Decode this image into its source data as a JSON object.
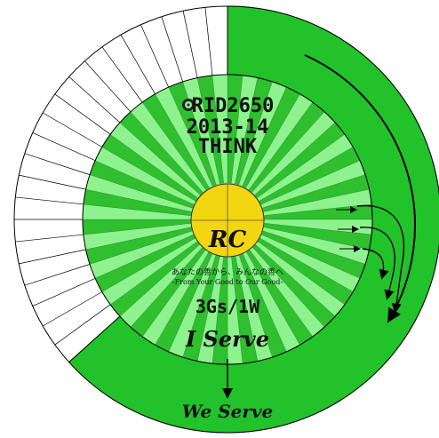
{
  "header": {
    "emblem": "rotary-wheel-icon",
    "district": "RID2650",
    "year": "2013-14",
    "theme": "THINK"
  },
  "center": {
    "label": "RC"
  },
  "motto": {
    "japanese": "あなたの善から、みんなの善へ",
    "english": "-From Your Good to Our Good-"
  },
  "goal": "3Gs/1W",
  "inner_slogan": "I Serve",
  "outer_slogan": "We Serve",
  "colors": {
    "outer_ring": "#22c22a",
    "inner_dark": "#2fbf2f",
    "inner_light": "#8ef28e",
    "center_disk": "#f2d60f",
    "outline": "#000000"
  }
}
